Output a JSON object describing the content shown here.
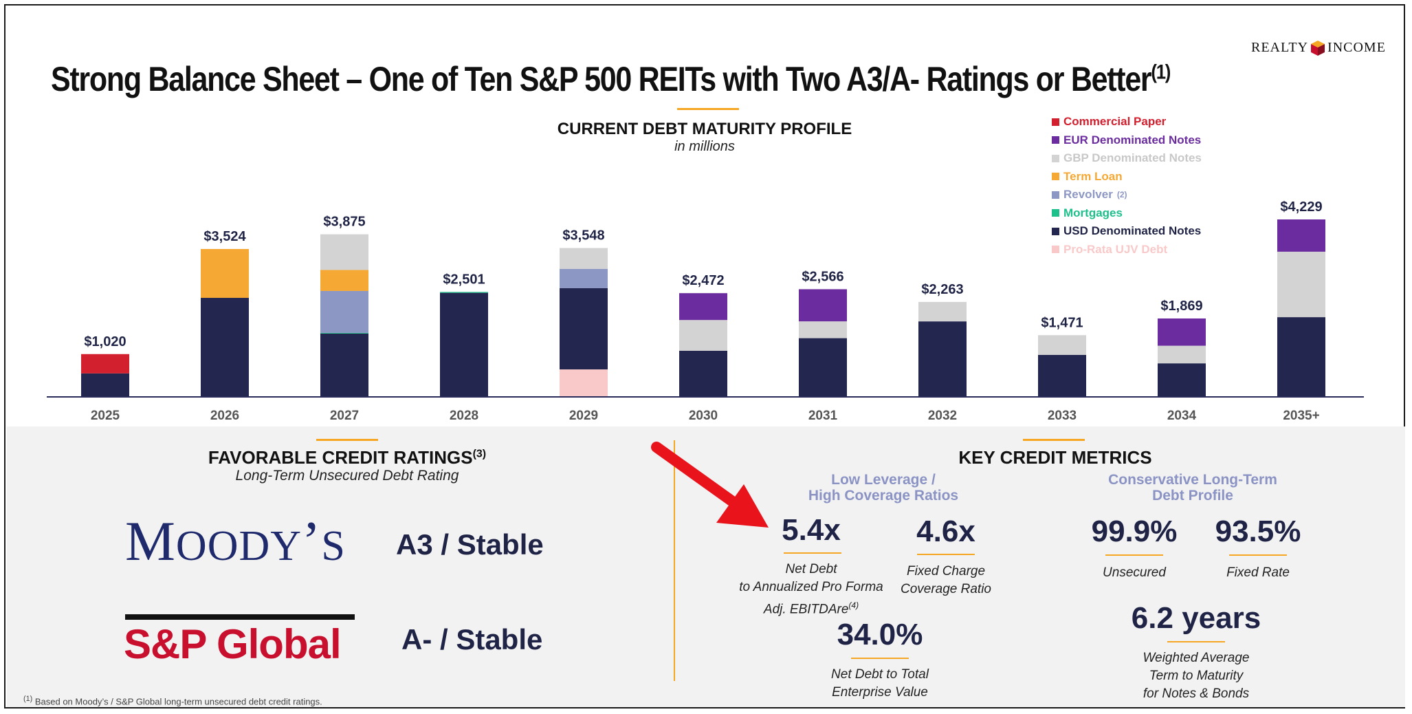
{
  "logo": {
    "left": "REALTY",
    "right": "INCOME"
  },
  "title": "Strong Balance Sheet – One of Ten S&P 500 REITs with Two A3/A- Ratings or Better",
  "title_footnote": "(1)",
  "chart_header": {
    "title": "CURRENT DEBT MATURITY PROFILE",
    "subtitle": "in millions"
  },
  "chart_data": {
    "type": "bar",
    "stacked": true,
    "title": "CURRENT DEBT MATURITY PROFILE",
    "subtitle": "in millions",
    "categories": [
      "2025",
      "2026",
      "2027",
      "2028",
      "2029",
      "2030",
      "2031",
      "2032",
      "2033",
      "2034",
      "2035+"
    ],
    "totals": [
      "$1,020",
      "$3,524",
      "$3,875",
      "$2,501",
      "$3,548",
      "$2,472",
      "$2,566",
      "$2,263",
      "$1,471",
      "$1,869",
      "$4,229"
    ],
    "total_values": [
      1020,
      3524,
      3875,
      2501,
      3548,
      2472,
      2566,
      2263,
      1471,
      1869,
      4229
    ],
    "ylim": [
      0,
      4500
    ],
    "series": [
      {
        "name": "Pro-Rata UJV Debt",
        "color": "#f9c9c9",
        "values": [
          0,
          0,
          0,
          0,
          655,
          0,
          0,
          0,
          0,
          0,
          0
        ]
      },
      {
        "name": "USD Denominated Notes",
        "color": "#23264f",
        "values": [
          560,
          2360,
          1510,
          2480,
          1935,
          1100,
          1400,
          1800,
          1000,
          800,
          1900
        ]
      },
      {
        "name": "Mortgages",
        "color": "#1dbf8a",
        "values": [
          0,
          0,
          15,
          21,
          0,
          0,
          0,
          0,
          0,
          0,
          0
        ]
      },
      {
        "name": "Revolver",
        "color": "#8d97c4",
        "values": [
          0,
          0,
          1000,
          0,
          460,
          0,
          0,
          0,
          0,
          0,
          0
        ]
      },
      {
        "name": "Term Loan",
        "color": "#f5a833",
        "values": [
          0,
          1164,
          500,
          0,
          0,
          0,
          0,
          0,
          0,
          0,
          0
        ]
      },
      {
        "name": "GBP Denominated Notes",
        "color": "#d3d3d3",
        "values": [
          0,
          0,
          850,
          0,
          498,
          732,
          400,
          463,
          471,
          419,
          1560
        ]
      },
      {
        "name": "EUR Denominated Notes",
        "color": "#6a2c9e",
        "values": [
          0,
          0,
          0,
          0,
          0,
          640,
          766,
          0,
          0,
          650,
          769
        ]
      },
      {
        "name": "Commercial Paper",
        "color": "#d3202f",
        "values": [
          460,
          0,
          0,
          0,
          0,
          0,
          0,
          0,
          0,
          0,
          0
        ]
      }
    ],
    "legend": [
      {
        "label": "Commercial Paper",
        "color": "#d3202f",
        "sup": ""
      },
      {
        "label": "EUR Denominated Notes",
        "color": "#6a2c9e",
        "sup": ""
      },
      {
        "label": "GBP Denominated Notes",
        "color": "#d3d3d3",
        "sup": ""
      },
      {
        "label": "Term Loan",
        "color": "#f5a833",
        "sup": ""
      },
      {
        "label": "Revolver",
        "color": "#8d97c4",
        "sup": "(2)"
      },
      {
        "label": "Mortgages",
        "color": "#1dbf8a",
        "sup": ""
      },
      {
        "label": "USD Denominated Notes",
        "color": "#23264f",
        "sup": ""
      },
      {
        "label": "Pro-Rata UJV Debt",
        "color": "#f9c9c9",
        "sup": ""
      }
    ],
    "legend_position": "top-right"
  },
  "ratings": {
    "title": "FAVORABLE CREDIT RATINGS",
    "title_footnote": "(3)",
    "subtitle": "Long-Term Unsecured Debt Rating",
    "moodys_name": {
      "big1": "M",
      "small1": "OODY",
      "apos": "’",
      "small2": "S"
    },
    "moodys_rating": "A3 / Stable",
    "sp_name": "S&P Global",
    "sp_rating": "A- / Stable"
  },
  "metrics": {
    "title": "KEY CREDIT METRICS",
    "left_head": [
      "Low Leverage /",
      "High Coverage Ratios"
    ],
    "right_head": [
      "Conservative Long-Term",
      "Debt Profile"
    ],
    "net_debt_ebitda": {
      "value": "5.4x",
      "label": [
        "Net Debt",
        "to Annualized Pro Forma",
        "Adj. EBITDAre"
      ],
      "sup": "(4)"
    },
    "fixed_charge": {
      "value": "4.6x",
      "label": [
        "Fixed Charge",
        "Coverage Ratio"
      ]
    },
    "net_debt_ev": {
      "value": "34.0%",
      "label": [
        "Net Debt to Total",
        "Enterprise Value"
      ]
    },
    "unsecured": {
      "value": "99.9%",
      "label": "Unsecured"
    },
    "fixed_rate": {
      "value": "93.5%",
      "label": "Fixed Rate"
    },
    "wat": {
      "value": "6.2 years",
      "label": [
        "Weighted Average",
        "Term to Maturity",
        "for Notes & Bonds"
      ]
    }
  },
  "footnote": {
    "sup": "(1)",
    "text": "Based on Moody’s / S&P Global long-term unsecured debt credit ratings."
  }
}
